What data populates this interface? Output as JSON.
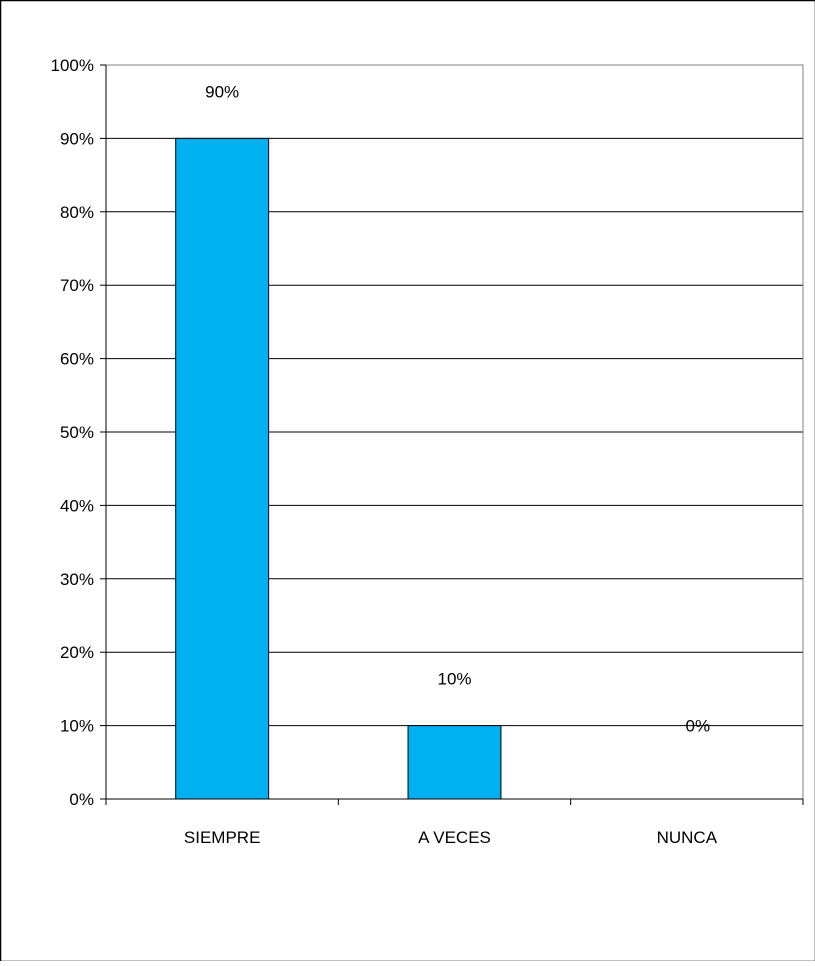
{
  "chart_data": {
    "type": "bar",
    "categories": [
      "SIEMPRE",
      "A VECES",
      "NUNCA"
    ],
    "values": [
      90,
      10,
      0
    ],
    "data_labels": [
      "90%",
      "10%",
      "0%"
    ],
    "y_ticks": [
      "0%",
      "10%",
      "20%",
      "30%",
      "40%",
      "50%",
      "60%",
      "70%",
      "80%",
      "90%",
      "100%"
    ],
    "ylim": [
      0,
      100
    ],
    "grid": true,
    "legend": false,
    "title": "",
    "xlabel": "",
    "ylabel": "",
    "colors": {
      "bar": "#00b0f0",
      "bar_stroke": "#000000",
      "grid": "#000000",
      "plot_border": "#808080"
    }
  }
}
